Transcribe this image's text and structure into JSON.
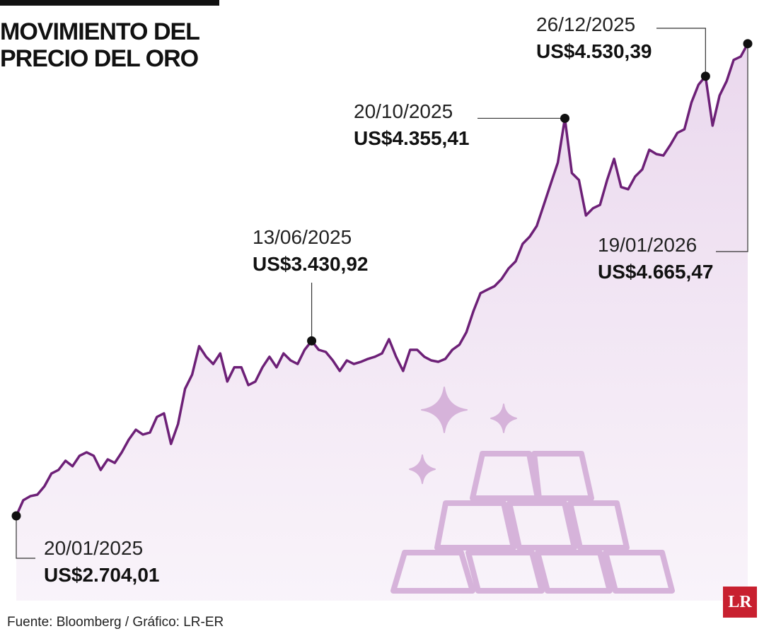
{
  "chart_data": {
    "type": "line",
    "title": "MOVIMIENTO DEL PRECIO DEL ORO",
    "source": "Fuente: Bloomberg / Gráfico: LR-ER",
    "logo": "LR",
    "color": "#6d2077",
    "ylim": [
      2205,
      4847
    ],
    "series": [
      {
        "values": [
          2704.01,
          2769,
          2786,
          2792,
          2827,
          2880,
          2895,
          2933,
          2910,
          2954,
          2968,
          2954,
          2895,
          2939,
          2924,
          2968,
          3021,
          3062,
          3042,
          3050,
          3115,
          3130,
          3003,
          3086,
          3232,
          3291,
          3409,
          3365,
          3335,
          3379,
          3262,
          3321,
          3321,
          3247,
          3262,
          3321,
          3365,
          3321,
          3379,
          3350,
          3335,
          3394,
          3430.92,
          3394,
          3385,
          3350,
          3306,
          3350,
          3335,
          3344,
          3356,
          3365,
          3379,
          3438,
          3365,
          3306,
          3394,
          3394,
          3365,
          3350,
          3344,
          3356,
          3394,
          3415,
          3467,
          3555,
          3629,
          3644,
          3658,
          3688,
          3732,
          3761,
          3834,
          3864,
          3908,
          3996,
          4084,
          4172,
          4355.41,
          4128,
          4099,
          3952,
          3982,
          3996,
          4099,
          4187,
          4070,
          4061,
          4114,
          4143,
          4225,
          4207,
          4201,
          4245,
          4295,
          4310,
          4422,
          4495,
          4530.39,
          4325,
          4450,
          4510,
          4598,
          4612,
          4665.47
        ]
      }
    ],
    "annotations": [
      {
        "date": "20/01/2025",
        "value": 2704.01,
        "label": "US$2.704,01"
      },
      {
        "date": "13/06/2025",
        "value": 3430.92,
        "label": "US$3.430,92"
      },
      {
        "date": "20/10/2025",
        "value": 4355.41,
        "label": "US$4.355,41"
      },
      {
        "date": "26/12/2025",
        "value": 4530.39,
        "label": "US$4.530,39"
      },
      {
        "date": "19/01/2026",
        "value": 4665.47,
        "label": "US$4.665,47"
      }
    ]
  }
}
